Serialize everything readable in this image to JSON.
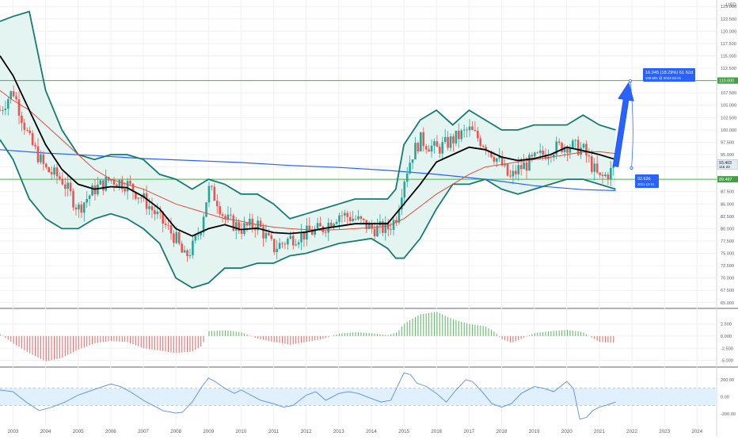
{
  "colors": {
    "background": "#ffffff",
    "grid": "#eef0f4",
    "bollinger": "#177a73",
    "bollinger_fill": "#e4f4f1",
    "ma_black": "#000000",
    "ma_red": "#e04b3e",
    "ma_blue": "#2962ff",
    "level_line": "#4caf50",
    "candle_up": "#26a69a",
    "candle_down": "#ef5350",
    "hist_pos": "#66bb6a",
    "hist_neg": "#e57373",
    "cci_line": "#5b8fd6",
    "cci_band": "#e1f0fd",
    "projection": "#2962ff",
    "label_blue": "#2962ff",
    "label_green": "#43a047"
  },
  "chart_data": [
    {
      "type": "candlestick",
      "name": "price-pane",
      "currency": "USD",
      "y_ticks": [
        "65.000",
        "67.500",
        "70.000",
        "72.500",
        "75.000",
        "77.500",
        "80.000",
        "82.500",
        "85.000",
        "87.500",
        "90.000",
        "92.500",
        "95.000",
        "97.500",
        "100.000",
        "102.500",
        "105.000",
        "107.500",
        "110.000",
        "112.500",
        "115.000",
        "117.500",
        "120.000",
        "122.500",
        "125.000"
      ],
      "x_ticks": [
        "2003",
        "2004",
        "2005",
        "2006",
        "2007",
        "2008",
        "2009",
        "2010",
        "2011",
        "2012",
        "2013",
        "2014",
        "2015",
        "2016",
        "2017",
        "2018",
        "2019",
        "2020",
        "2021",
        "2022",
        "2023",
        "2024"
      ],
      "ylim": [
        64,
        126
      ],
      "xlim": [
        2002.6,
        2024.6
      ],
      "trend": {
        "x": [
          2002.6,
          2003.0,
          2003.5,
          2004.0,
          2004.5,
          2005.0,
          2005.5,
          2006.0,
          2006.5,
          2007.0,
          2007.5,
          2008.0,
          2008.25,
          2008.5,
          2008.75,
          2009.0,
          2009.25,
          2009.5,
          2010.0,
          2010.5,
          2011.0,
          2011.5,
          2012.0,
          2012.5,
          2013.0,
          2013.5,
          2014.0,
          2014.5,
          2014.75,
          2015.0,
          2015.25,
          2015.5,
          2016.0,
          2016.5,
          2017.0,
          2017.5,
          2018.0,
          2018.25,
          2018.5,
          2019.0,
          2019.5,
          2020.0,
          2020.5,
          2020.75,
          2021.0,
          2021.25,
          2021.5
        ],
        "y": [
          104,
          108,
          98,
          92,
          90,
          84,
          88,
          90,
          89,
          86,
          82,
          78,
          74,
          76,
          80,
          88,
          86,
          82,
          80,
          81,
          76,
          78,
          79,
          80,
          83,
          82,
          80,
          80,
          82,
          90,
          95,
          98,
          96,
          98,
          100,
          97,
          93,
          90,
          92,
          94,
          96,
          97,
          96,
          93,
          90,
          91,
          92.6
        ]
      },
      "bollinger": {
        "x": [
          2002.6,
          2003.0,
          2003.5,
          2004.0,
          2004.5,
          2005.0,
          2005.5,
          2006.0,
          2006.5,
          2007.0,
          2007.5,
          2008.0,
          2008.5,
          2009.0,
          2009.5,
          2010.0,
          2010.5,
          2011.0,
          2011.5,
          2012.0,
          2012.5,
          2013.0,
          2013.5,
          2014.0,
          2014.5,
          2014.75,
          2015.0,
          2015.5,
          2016.0,
          2016.5,
          2017.0,
          2017.5,
          2018.0,
          2018.5,
          2019.0,
          2019.5,
          2020.0,
          2020.5,
          2021.0,
          2021.5
        ],
        "upper": [
          122,
          123,
          124,
          108,
          100,
          95,
          94,
          95,
          95,
          94,
          91,
          90,
          88,
          90,
          89,
          87,
          87,
          85,
          82,
          83,
          84,
          85,
          86,
          86,
          86,
          88,
          97,
          102,
          104,
          101,
          104,
          102,
          100,
          100,
          101,
          101,
          101,
          103,
          101,
          100
        ],
        "middle": [
          110,
          108,
          104,
          95,
          90,
          88,
          88,
          89,
          88.5,
          87,
          84,
          80,
          78,
          80,
          81,
          79.5,
          80,
          79,
          78.5,
          79,
          80,
          80.5,
          81,
          81,
          80.5,
          81,
          86,
          90.5,
          94,
          95,
          96.5,
          96,
          94,
          93.5,
          94,
          95,
          96,
          96,
          95,
          94
        ],
        "lower": [
          98,
          94,
          86,
          82,
          80,
          80,
          82,
          83,
          82,
          80,
          77,
          70,
          68,
          69,
          72,
          72,
          73,
          73,
          74.5,
          75,
          76,
          77,
          77.5,
          78,
          76,
          74,
          74,
          78,
          84,
          89,
          89,
          90,
          88,
          87,
          88,
          89,
          90,
          90,
          89,
          88
        ]
      },
      "moving_averages": [
        {
          "color": "#000000",
          "x": [
            2002.6,
            2003.0,
            2003.5,
            2004.0,
            2004.5,
            2005.0,
            2005.5,
            2006.0,
            2006.5,
            2007.0,
            2007.5,
            2008.0,
            2008.5,
            2009.0,
            2009.5,
            2010.0,
            2010.5,
            2011.0,
            2011.5,
            2012.0,
            2012.5,
            2013.0,
            2013.5,
            2014.0,
            2014.5,
            2015.0,
            2015.5,
            2016.0,
            2016.5,
            2017.0,
            2017.5,
            2018.0,
            2018.5,
            2019.0,
            2019.5,
            2020.0,
            2020.5,
            2021.0,
            2021.5
          ],
          "y": [
            115,
            111,
            104,
            97,
            92,
            89,
            88,
            88.5,
            88.3,
            86.5,
            84,
            80,
            78.5,
            80,
            80.8,
            79.8,
            80.1,
            79.2,
            79,
            79.3,
            80,
            80.5,
            81,
            81,
            81,
            85,
            89,
            93.5,
            95,
            96.5,
            96,
            94.5,
            93.8,
            94.2,
            95,
            96.5,
            95.8,
            95,
            94
          ]
        },
        {
          "color": "#e04b3e",
          "x": [
            2002.6,
            2003.0,
            2003.5,
            2004.0,
            2004.5,
            2005.0,
            2005.5,
            2006.0,
            2006.5,
            2007.0,
            2007.5,
            2008.0,
            2008.5,
            2009.0,
            2009.5,
            2010.0,
            2010.5,
            2011.0,
            2011.5,
            2012.0,
            2012.5,
            2013.0,
            2013.5,
            2014.0,
            2014.5,
            2015.0,
            2015.5,
            2016.0,
            2016.5,
            2017.0,
            2017.5,
            2018.0,
            2018.5,
            2019.0,
            2019.5,
            2020.0,
            2020.5,
            2021.0,
            2021.5
          ],
          "y": [
            108,
            106,
            104,
            101,
            98,
            95,
            92,
            90,
            89,
            88,
            86.5,
            85,
            84,
            83,
            82,
            81.5,
            80.8,
            80.3,
            80,
            79.8,
            79.7,
            79.8,
            80,
            80.2,
            80.5,
            82,
            84.5,
            87,
            89,
            91,
            92.5,
            93,
            93.5,
            94,
            94.5,
            95,
            95.5,
            95.6,
            95.2
          ]
        },
        {
          "color": "#2962ff",
          "x": [
            2002.6,
            2004.0,
            2005.5,
            2007.0,
            2008.5,
            2010.0,
            2011.5,
            2013.0,
            2014.5,
            2016.0,
            2017.5,
            2019.0,
            2020.5,
            2021.5
          ],
          "y": [
            96,
            95.3,
            94.8,
            94.2,
            93.8,
            93.4,
            92.8,
            92.4,
            91.8,
            91,
            90,
            88.7,
            87.9,
            87.7
          ]
        }
      ],
      "levels": [
        {
          "value": 110.0,
          "label": "110.000"
        },
        {
          "value": 90.0,
          "label": "89.497"
        }
      ],
      "last_price": {
        "value": 93.0,
        "label": "93.403",
        "sublabel": "116 20"
      },
      "projection": {
        "from": [
          2021.5,
          92.6
        ],
        "to": [
          2021.9,
          109.6
        ],
        "label_main": "16.945 (18.29%) 61 62d",
        "label_sub": "109.581 @ 2022-02-01",
        "anchor_label_main": "92.636",
        "anchor_label_sub": "2021-12-01"
      }
    },
    {
      "type": "histogram",
      "name": "momentum-pane",
      "y_ticks": [
        "2.500",
        "0.000",
        "-2.500",
        "-5.000"
      ],
      "ylim": [
        -6.2,
        5.2
      ],
      "envelope": {
        "x": [
          2002.6,
          2003.0,
          2003.5,
          2004.0,
          2004.5,
          2005.0,
          2005.5,
          2006.0,
          2006.5,
          2007.0,
          2007.5,
          2008.0,
          2008.5,
          2008.8,
          2009.0,
          2009.5,
          2010.0,
          2010.5,
          2011.0,
          2011.3,
          2011.5,
          2012.0,
          2012.5,
          2013.0,
          2013.5,
          2014.0,
          2014.5,
          2014.8,
          2015.0,
          2015.5,
          2016.0,
          2016.5,
          2017.0,
          2017.5,
          2017.8,
          2018.0,
          2018.3,
          2018.6,
          2019.0,
          2019.5,
          2020.0,
          2020.5,
          2021.0,
          2021.5
        ],
        "y": [
          0.5,
          -1.5,
          -3.5,
          -5.2,
          -4.5,
          -2.8,
          -1.5,
          -1.0,
          -1.2,
          -2.5,
          -3.0,
          -3.5,
          -3.2,
          -2.0,
          1.0,
          1.2,
          0.8,
          -0.5,
          -1.2,
          -1.5,
          -1.8,
          -1.2,
          -0.6,
          0.5,
          0.8,
          0.6,
          0.2,
          0.8,
          2.5,
          4.5,
          5.0,
          3.5,
          2.5,
          2.0,
          0.8,
          -0.6,
          -1.4,
          -0.6,
          0.6,
          1.0,
          1.3,
          0.8,
          -1.2,
          -1.4
        ]
      }
    },
    {
      "type": "line",
      "name": "oscillator-pane",
      "y_ticks": [
        "200.00",
        "0.00",
        "-200.00"
      ],
      "ylim": [
        -300,
        320
      ],
      "band": [
        -100,
        100
      ],
      "x": [
        2002.6,
        2003.0,
        2003.4,
        2003.8,
        2004.2,
        2004.6,
        2005.0,
        2005.3,
        2005.6,
        2006.0,
        2006.3,
        2006.6,
        2007.0,
        2007.3,
        2007.6,
        2008.0,
        2008.2,
        2008.5,
        2008.8,
        2009.0,
        2009.2,
        2009.5,
        2009.8,
        2010.0,
        2010.3,
        2010.6,
        2011.0,
        2011.3,
        2011.6,
        2012.0,
        2012.3,
        2012.6,
        2013.0,
        2013.3,
        2013.6,
        2014.0,
        2014.3,
        2014.6,
        2015.0,
        2015.2,
        2015.4,
        2015.7,
        2016.0,
        2016.3,
        2016.6,
        2016.9,
        2017.1,
        2017.4,
        2017.7,
        2018.0,
        2018.3,
        2018.6,
        2019.0,
        2019.3,
        2019.6,
        2020.0,
        2020.2,
        2020.4,
        2020.6,
        2020.8,
        2021.0,
        2021.2,
        2021.5
      ],
      "y": [
        80,
        60,
        -60,
        -160,
        -120,
        -60,
        20,
        60,
        100,
        150,
        120,
        60,
        -40,
        -100,
        -160,
        -190,
        -180,
        -60,
        120,
        220,
        180,
        100,
        40,
        80,
        20,
        -40,
        -80,
        -120,
        -100,
        20,
        60,
        -40,
        40,
        60,
        40,
        -20,
        -60,
        -40,
        280,
        260,
        160,
        120,
        40,
        -60,
        80,
        200,
        180,
        60,
        -80,
        -120,
        -80,
        40,
        120,
        100,
        60,
        180,
        100,
        -260,
        -240,
        -160,
        -120,
        -100,
        -60
      ]
    }
  ]
}
